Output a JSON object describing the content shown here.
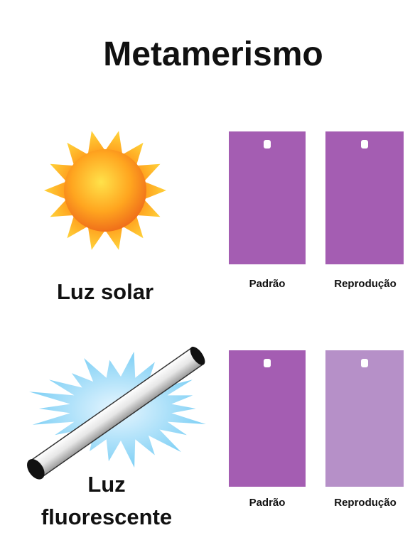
{
  "title": "Metamerismo",
  "rows": [
    {
      "label": "Luz solar",
      "swatches": [
        "Padrão",
        "Reprodução"
      ]
    },
    {
      "label": [
        "Luz",
        "fluorescente"
      ],
      "swatches": [
        "Padrão",
        "Reprodução"
      ]
    }
  ]
}
